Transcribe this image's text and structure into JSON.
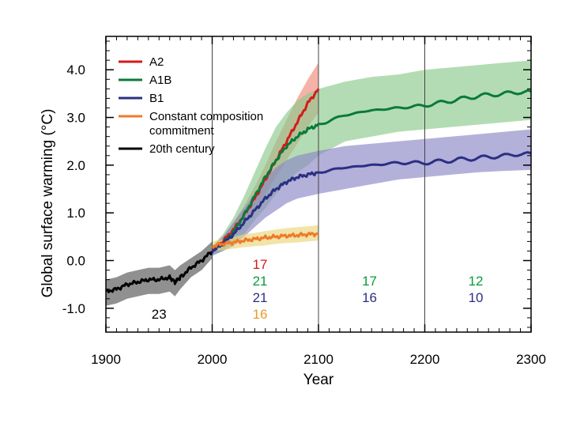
{
  "chart_data": {
    "type": "line",
    "title": "",
    "xlabel": "Year",
    "ylabel": "Global surface warming (°C)",
    "xlim": [
      1900,
      2300
    ],
    "ylim": [
      -1.5,
      4.7
    ],
    "x_ticks": [
      1900,
      2000,
      2100,
      2200,
      2300
    ],
    "y_ticks": [
      -1.0,
      0.0,
      1.0,
      2.0,
      3.0,
      4.0
    ],
    "x_tick_labels": [
      "1900",
      "2000",
      "2100",
      "2200",
      "2300"
    ],
    "y_tick_labels": [
      "-1.0",
      "0.0",
      "1.0",
      "2.0",
      "3.0",
      "4.0"
    ],
    "vertical_reference_lines": [
      2000,
      2100,
      2200
    ],
    "legend_position": "top-left",
    "legend": [
      {
        "label": "A2",
        "color": "#d7191c"
      },
      {
        "label": "A1B",
        "color": "#0b7a3a"
      },
      {
        "label": "B1",
        "color": "#2b2f83"
      },
      {
        "label": "Constant composition\ncommitment",
        "color": "#f07a2a"
      },
      {
        "label": "20th century",
        "color": "#000000"
      }
    ],
    "series": [
      {
        "name": "20th century",
        "color": "#000000",
        "band_color": "#555555",
        "x": [
          1900,
          1910,
          1920,
          1930,
          1940,
          1950,
          1960,
          1965,
          1970,
          1980,
          1990,
          2000
        ],
        "y": [
          -0.65,
          -0.6,
          -0.5,
          -0.45,
          -0.4,
          -0.4,
          -0.35,
          -0.45,
          -0.35,
          -0.15,
          0.0,
          0.2
        ],
        "lower": [
          -0.95,
          -0.9,
          -0.8,
          -0.75,
          -0.7,
          -0.7,
          -0.65,
          -0.75,
          -0.6,
          -0.35,
          -0.2,
          0.05
        ],
        "upper": [
          -0.4,
          -0.35,
          -0.25,
          -0.2,
          -0.15,
          -0.15,
          -0.1,
          -0.2,
          -0.1,
          0.05,
          0.2,
          0.4
        ]
      },
      {
        "name": "A2",
        "color": "#d7191c",
        "band_color": "#f08a7a",
        "x": [
          2000,
          2010,
          2020,
          2030,
          2040,
          2050,
          2060,
          2070,
          2080,
          2090,
          2100
        ],
        "y": [
          0.2,
          0.4,
          0.65,
          0.95,
          1.3,
          1.7,
          2.1,
          2.5,
          2.9,
          3.3,
          3.6
        ],
        "lower": [
          0.15,
          0.3,
          0.5,
          0.75,
          1.05,
          1.4,
          1.75,
          2.1,
          2.45,
          2.8,
          3.1
        ],
        "upper": [
          0.3,
          0.5,
          0.8,
          1.15,
          1.55,
          2.0,
          2.5,
          2.95,
          3.4,
          3.8,
          4.15
        ]
      },
      {
        "name": "A1B",
        "color": "#0b7a3a",
        "band_color": "#8cc98c",
        "x": [
          2000,
          2010,
          2020,
          2030,
          2040,
          2050,
          2060,
          2070,
          2080,
          2090,
          2100,
          2125,
          2150,
          2175,
          2200,
          2225,
          2250,
          2275,
          2300
        ],
        "y": [
          0.2,
          0.35,
          0.6,
          0.95,
          1.35,
          1.75,
          2.1,
          2.4,
          2.6,
          2.75,
          2.85,
          3.05,
          3.15,
          3.2,
          3.25,
          3.35,
          3.45,
          3.5,
          3.55
        ],
        "lower": [
          0.1,
          0.2,
          0.35,
          0.55,
          0.85,
          1.1,
          1.4,
          1.65,
          1.85,
          2.0,
          2.2,
          2.5,
          2.6,
          2.7,
          2.75,
          2.8,
          2.85,
          2.9,
          2.95
        ],
        "upper": [
          0.3,
          0.55,
          0.9,
          1.35,
          1.85,
          2.35,
          2.8,
          3.1,
          3.35,
          3.5,
          3.6,
          3.75,
          3.85,
          3.9,
          4.0,
          4.05,
          4.1,
          4.15,
          4.2
        ]
      },
      {
        "name": "B1",
        "color": "#2b2f83",
        "band_color": "#8a86c4",
        "x": [
          2000,
          2010,
          2020,
          2030,
          2040,
          2050,
          2060,
          2070,
          2080,
          2090,
          2100,
          2125,
          2150,
          2175,
          2200,
          2225,
          2250,
          2275,
          2300
        ],
        "y": [
          0.2,
          0.35,
          0.55,
          0.8,
          1.05,
          1.3,
          1.5,
          1.65,
          1.75,
          1.8,
          1.85,
          1.95,
          2.0,
          2.05,
          2.05,
          2.1,
          2.15,
          2.2,
          2.25
        ],
        "lower": [
          0.1,
          0.2,
          0.3,
          0.5,
          0.7,
          0.9,
          1.05,
          1.2,
          1.3,
          1.35,
          1.4,
          1.5,
          1.6,
          1.7,
          1.75,
          1.8,
          1.85,
          1.88,
          1.9
        ],
        "upper": [
          0.3,
          0.5,
          0.8,
          1.1,
          1.4,
          1.7,
          1.95,
          2.1,
          2.2,
          2.25,
          2.3,
          2.4,
          2.45,
          2.5,
          2.55,
          2.6,
          2.65,
          2.7,
          2.75
        ]
      },
      {
        "name": "Constant composition\ncommitment",
        "color": "#f07a2a",
        "band_color": "#e8d67a",
        "x": [
          2000,
          2010,
          2020,
          2030,
          2040,
          2050,
          2060,
          2070,
          2080,
          2090,
          2100
        ],
        "y": [
          0.3,
          0.35,
          0.38,
          0.42,
          0.45,
          0.48,
          0.5,
          0.52,
          0.53,
          0.55,
          0.56
        ],
        "lower": [
          0.2,
          0.22,
          0.25,
          0.28,
          0.3,
          0.32,
          0.35,
          0.37,
          0.38,
          0.4,
          0.42
        ],
        "upper": [
          0.4,
          0.45,
          0.5,
          0.55,
          0.58,
          0.62,
          0.65,
          0.68,
          0.7,
          0.72,
          0.74
        ]
      }
    ],
    "annotations": [
      {
        "text": "23",
        "x": 1950,
        "row": 1,
        "color": "#000000"
      },
      {
        "text": "17",
        "x": 2045,
        "row": -2,
        "color": "#d7191c"
      },
      {
        "text": "21",
        "x": 2045,
        "row": -1,
        "color": "#0b9a3a"
      },
      {
        "text": "21",
        "x": 2045,
        "row": 0,
        "color": "#2b2f83"
      },
      {
        "text": "16",
        "x": 2045,
        "row": 1,
        "color": "#e89a2a"
      },
      {
        "text": "17",
        "x": 2148,
        "row": -1,
        "color": "#0b9a3a"
      },
      {
        "text": "16",
        "x": 2148,
        "row": 0,
        "color": "#2b2f83"
      },
      {
        "text": "12",
        "x": 2248,
        "row": -1,
        "color": "#0b9a3a"
      },
      {
        "text": "10",
        "x": 2248,
        "row": 0,
        "color": "#2b2f83"
      }
    ]
  }
}
